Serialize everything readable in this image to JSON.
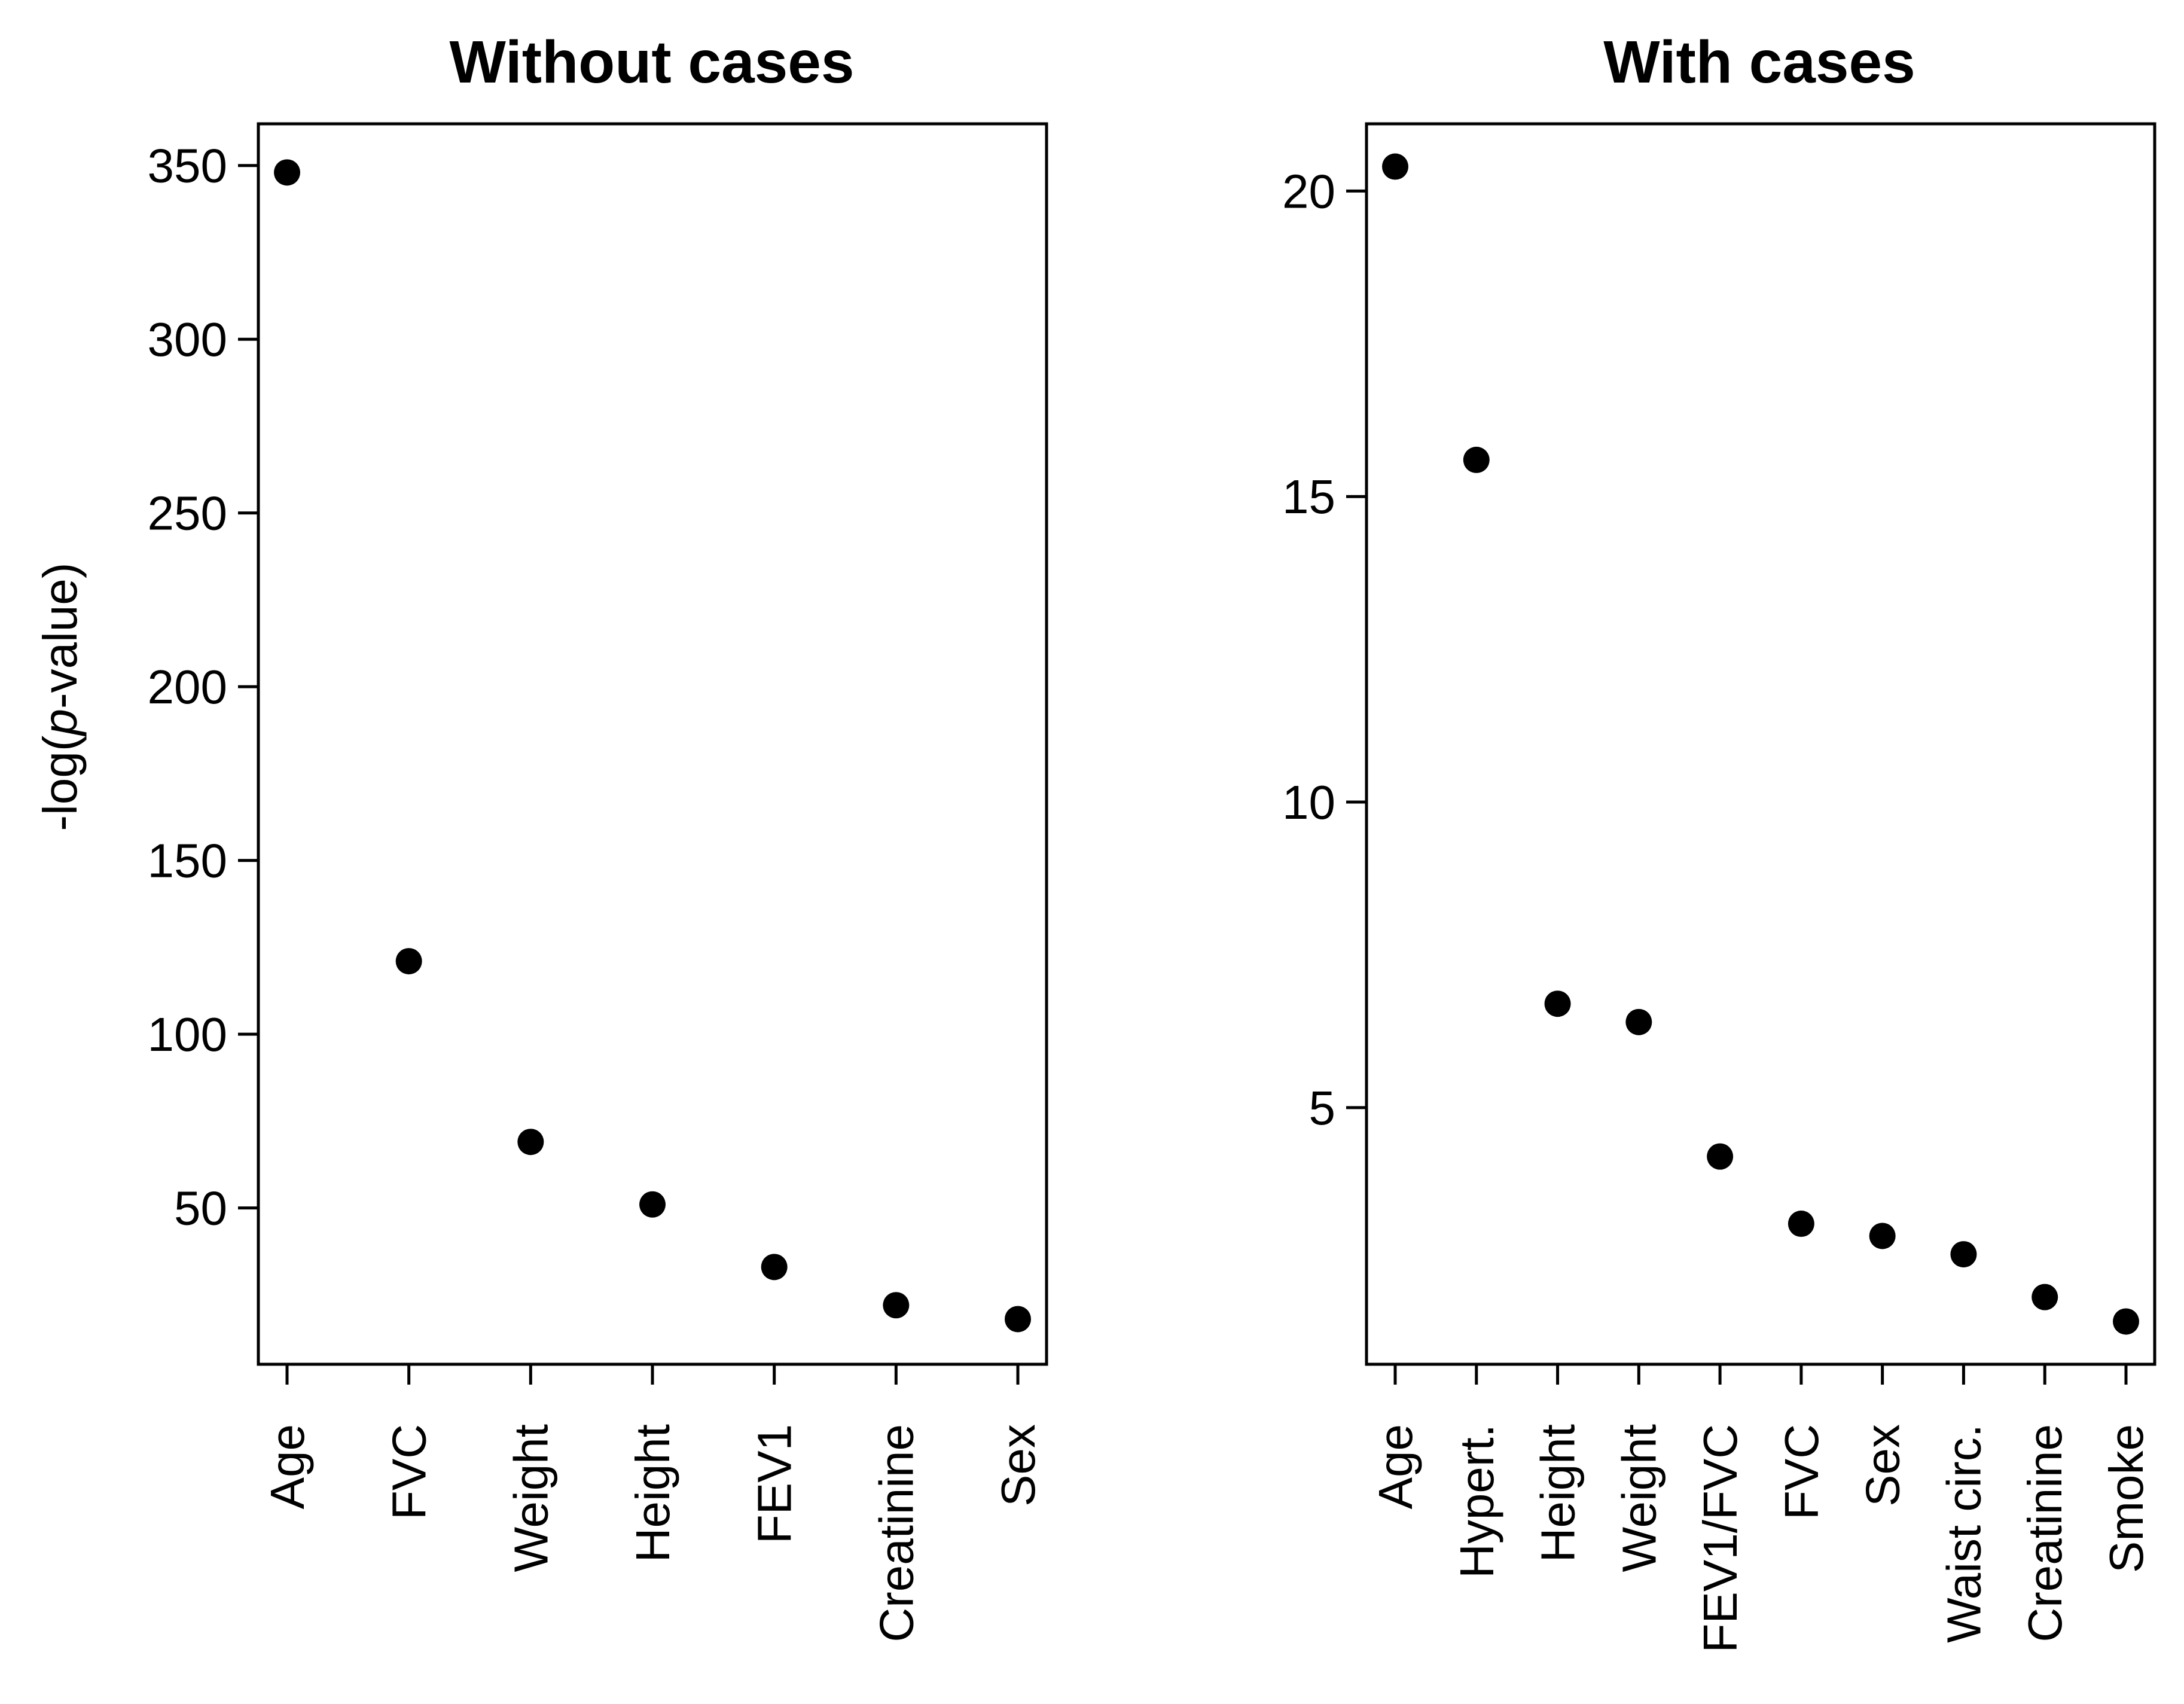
{
  "chart_data": [
    {
      "type": "scatter",
      "title": "Without cases",
      "ylabel": "-log(p-value)",
      "ylabel_parts": {
        "prefix": "-log(",
        "italic": "p",
        "suffix": "-value)"
      },
      "categories": [
        "Age",
        "FVC",
        "Weight",
        "Height",
        "FEV1",
        "Creatinine",
        "Sex"
      ],
      "values": [
        348,
        121,
        69,
        51,
        33,
        22,
        18
      ],
      "yticks": [
        50,
        100,
        150,
        200,
        250,
        300,
        350
      ],
      "ylim": [
        5,
        362
      ],
      "grid": false,
      "legend": "none"
    },
    {
      "type": "scatter",
      "title": "With cases",
      "ylabel": "",
      "categories": [
        "Age",
        "Hypert.",
        "Height",
        "Weight",
        "FEV1/FVC",
        "FVC",
        "Sex",
        "Waist circ.",
        "Creatinine",
        "Smoke"
      ],
      "values": [
        20.4,
        15.6,
        6.7,
        6.4,
        4.2,
        3.1,
        2.9,
        2.6,
        1.9,
        1.5
      ],
      "yticks": [
        5,
        10,
        15,
        20
      ],
      "ylim": [
        0.8,
        21.1
      ],
      "grid": false,
      "legend": "none"
    }
  ]
}
